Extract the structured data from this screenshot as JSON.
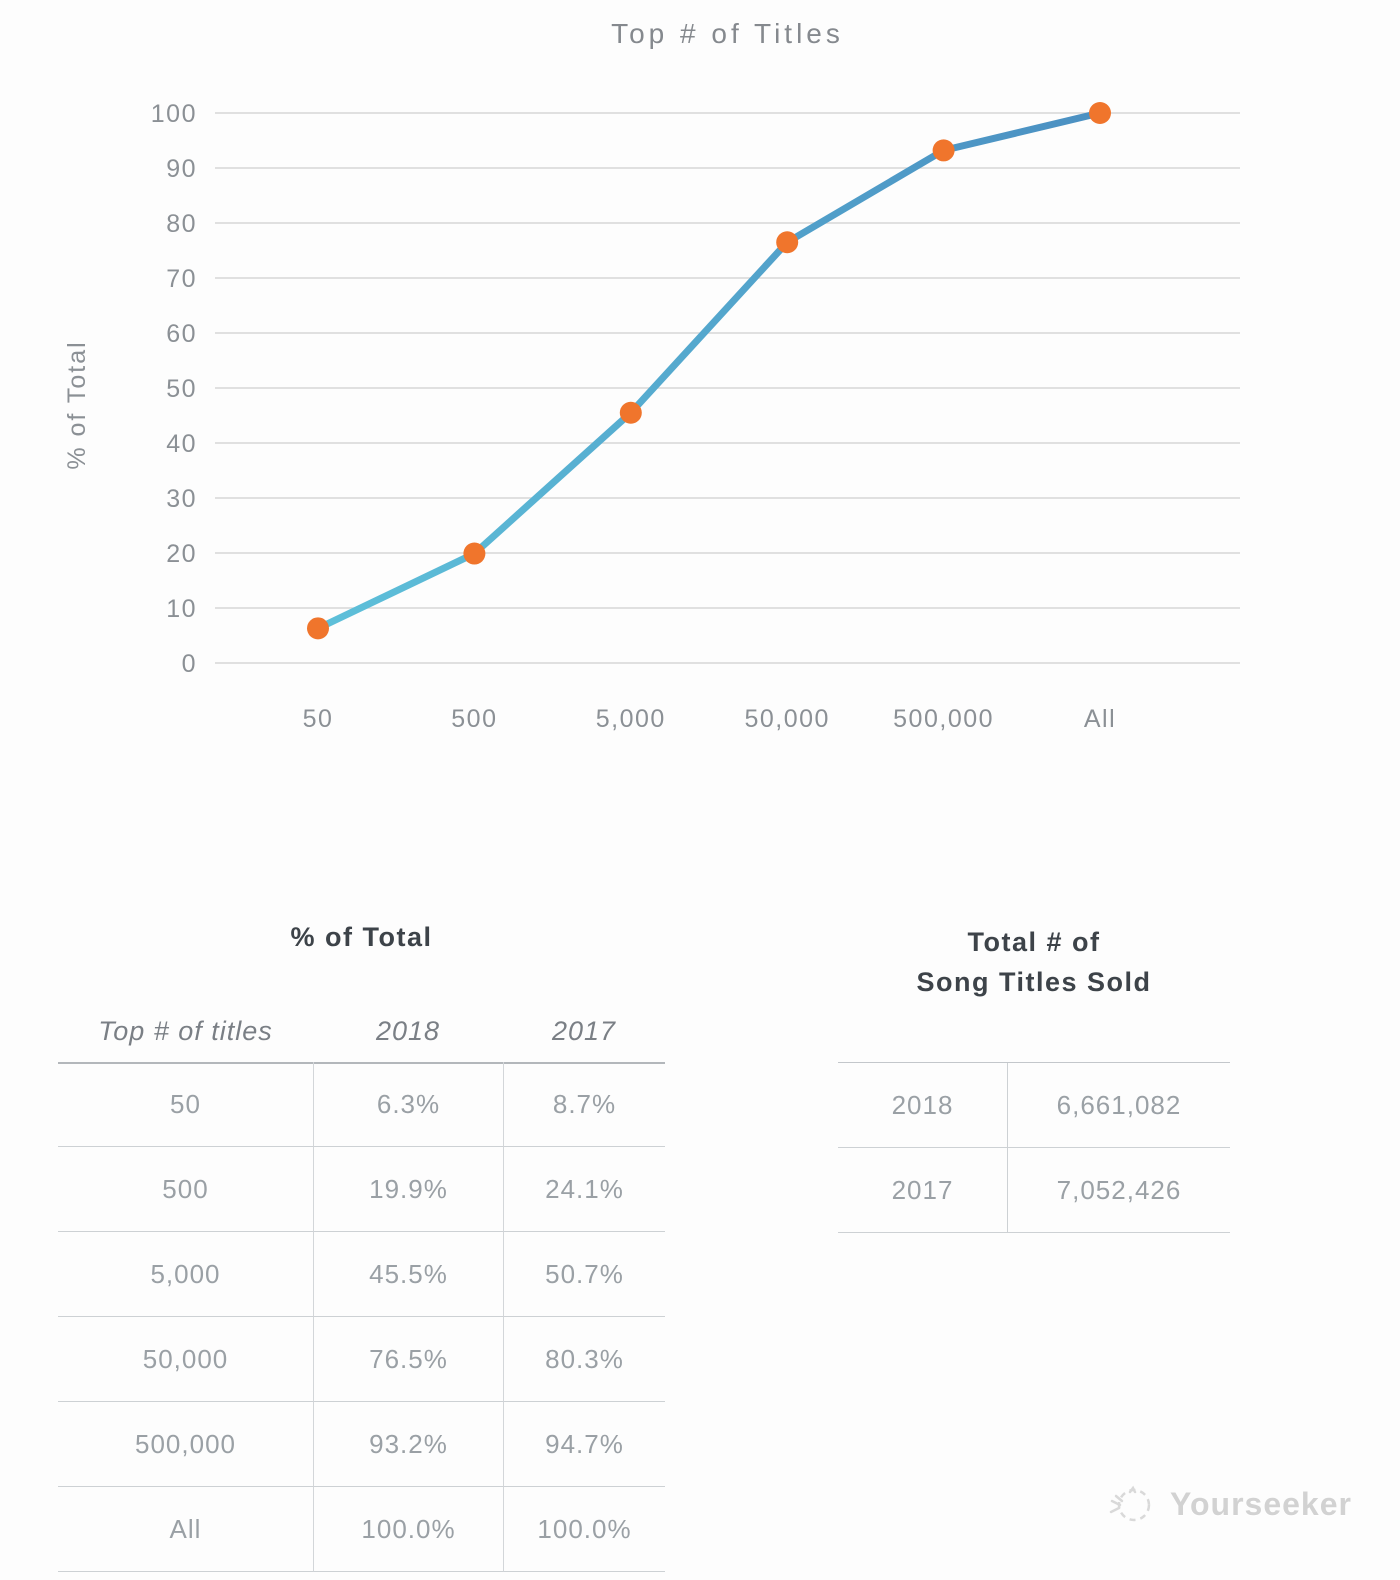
{
  "chart_data": {
    "type": "line",
    "title": "Top # of Titles",
    "xlabel": "",
    "ylabel": "% of Total",
    "categories": [
      "50",
      "500",
      "5,000",
      "50,000",
      "500,000",
      "All"
    ],
    "series": [
      {
        "name": "% of Total by top # of titles",
        "values": [
          6.3,
          19.9,
          45.5,
          76.5,
          93.2,
          100.0
        ]
      }
    ],
    "ylim": [
      0,
      100
    ],
    "ytick_step": 10,
    "grid": "horizontal",
    "legend": "none",
    "line_color_start": "#5ec1da",
    "line_color_end": "#4b90c2",
    "point_color": "#f0752c",
    "gridline_color": "#d7d7d7"
  },
  "left_table": {
    "title": "% of Total",
    "columns": [
      "Top # of titles",
      "2018",
      "2017"
    ],
    "rows": [
      [
        "50",
        "6.3%",
        "8.7%"
      ],
      [
        "500",
        "19.9%",
        "24.1%"
      ],
      [
        "5,000",
        "45.5%",
        "50.7%"
      ],
      [
        "50,000",
        "76.5%",
        "80.3%"
      ],
      [
        "500,000",
        "93.2%",
        "94.7%"
      ],
      [
        "All",
        "100.0%",
        "100.0%"
      ]
    ]
  },
  "right_table": {
    "title_line1": "Total # of",
    "title_line2": "Song Titles Sold",
    "rows": [
      [
        "2018",
        "6,661,082"
      ],
      [
        "2017",
        "7,052,426"
      ]
    ]
  },
  "watermark": {
    "label": "Yourseeker"
  }
}
